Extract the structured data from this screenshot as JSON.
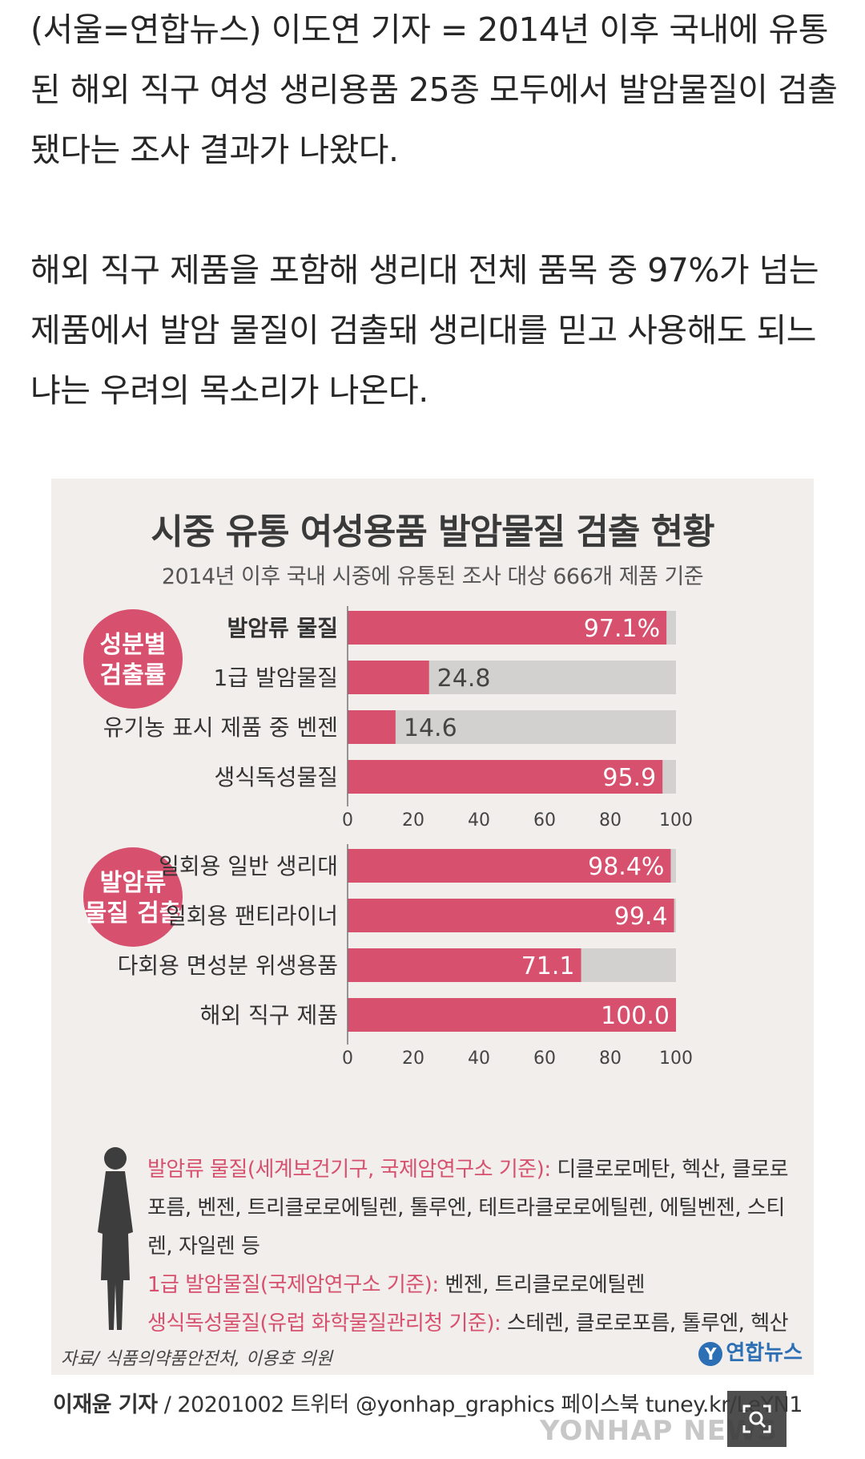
{
  "article": {
    "paragraphs": [
      "(서울=연합뉴스) 이도연 기자 = 2014년 이후 국내에 유통된 해외 직구 여성 생리용품 25종 모두에서 발암물질이 검출됐다는 조사 결과가 나왔다.",
      "해외 직구 제품을 포함해 생리대 전체 품목 중 97%가 넘는 제품에서 발암 물질이 검출돼 생리대를 믿고 사용해도 되느냐는 우려의 목소리가 나온다."
    ]
  },
  "graphic": {
    "title": "시중 유통 여성용품 발암물질 검출 현황",
    "subtitle": "2014년 이후 국내 시중에 유통된 조사 대상 666개 제품 기준",
    "notes": [
      {
        "label": "발암류 물질(세계보건기구, 국제암연구소 기준):",
        "text": " 디클로로메탄, 헥산, 클로로포름, 벤젠, 트리클로로에틸렌, 톨루엔, 테트라클로로에틸렌, 에틸벤젠, 스티렌, 자일렌 등"
      },
      {
        "label": "1급 발암물질(국제암연구소 기준):",
        "text": " 벤젠, 트리클로로에틸렌"
      },
      {
        "label": "생식독성물질(유럽 화학물질관리청 기준):",
        "text": " 스테렌, 클로로포름, 톨루엔, 헥산"
      }
    ],
    "source": "자료/ 식품의약품안전처, 이용호 의원",
    "logo": "연합뉴스",
    "logo_mark": "Y",
    "colors": {
      "bar": "#d7506e",
      "track": "#d3d1cf",
      "circle": "#d7506e",
      "background": "#f1eeec"
    }
  },
  "chart_data": [
    {
      "type": "bar",
      "orientation": "horizontal",
      "group_label": "성분별 검출률",
      "group_label_lines": [
        "성분별",
        "검출률"
      ],
      "categories": [
        "발암류 물질",
        "1급 발암물질",
        "유기농 표시 제품 중 벤젠",
        "생식독성물질"
      ],
      "values": [
        97.1,
        24.8,
        14.6,
        95.9
      ],
      "value_labels": [
        "97.1%",
        "24.8",
        "14.6",
        "95.9"
      ],
      "xlim": [
        0,
        100
      ],
      "ticks": [
        0,
        20,
        40,
        60,
        80,
        100
      ]
    },
    {
      "type": "bar",
      "orientation": "horizontal",
      "group_label": "발암류 물질 검출",
      "group_label_lines": [
        "발암류",
        "물질 검출"
      ],
      "categories": [
        "일회용 일반 생리대",
        "일회용 팬티라이너",
        "다회용 면성분 위생용품",
        "해외 직구 제품"
      ],
      "values": [
        98.4,
        99.4,
        71.1,
        100.0
      ],
      "value_labels": [
        "98.4%",
        "99.4",
        "71.1",
        "100.0"
      ],
      "xlim": [
        0,
        100
      ],
      "ticks": [
        0,
        20,
        40,
        60,
        80,
        100
      ]
    }
  ],
  "footer": {
    "credit_name": "이재윤 기자",
    "credit_rest": " / 20201002  트위터 @yonhap_graphics  페이스북 tuney.kr/LeYN1",
    "watermark": "YONHAP NEWS"
  }
}
